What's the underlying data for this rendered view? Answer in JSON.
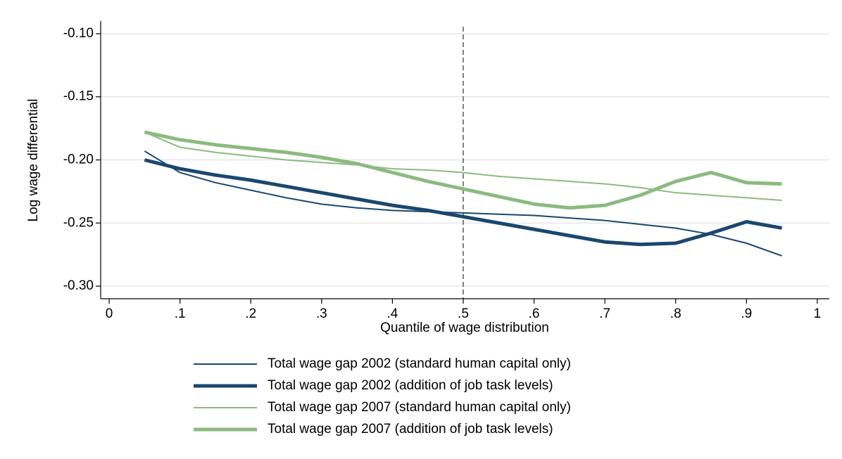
{
  "chart_data": {
    "type": "line",
    "y_label": "Log wage differential",
    "x_label": "Quantile of wage distribution",
    "x": [
      0.05,
      0.1,
      0.15,
      0.2,
      0.25,
      0.3,
      0.35,
      0.4,
      0.45,
      0.5,
      0.55,
      0.6,
      0.65,
      0.7,
      0.75,
      0.8,
      0.85,
      0.9,
      0.95
    ],
    "series": [
      {
        "name": "Total wage gap 2002 (standard human capital only)",
        "color": "#1a476f",
        "line_width": 2,
        "values": [
          -0.193,
          -0.21,
          -0.218,
          -0.224,
          -0.23,
          -0.235,
          -0.238,
          -0.24,
          -0.241,
          -0.242,
          -0.243,
          -0.244,
          -0.246,
          -0.248,
          -0.251,
          -0.254,
          -0.259,
          -0.266,
          -0.276
        ]
      },
      {
        "name": "Total wage gap 2002 (addition of job task levels)",
        "color": "#1a476f",
        "line_width": 5,
        "values": [
          -0.2,
          -0.207,
          -0.212,
          -0.216,
          -0.221,
          -0.226,
          -0.231,
          -0.236,
          -0.24,
          -0.245,
          -0.25,
          -0.255,
          -0.26,
          -0.265,
          -0.267,
          -0.266,
          -0.258,
          -0.249,
          -0.254
        ]
      },
      {
        "name": "Total wage gap 2007 (standard human capital only)",
        "color": "#8cba80",
        "line_width": 2,
        "values": [
          -0.178,
          -0.19,
          -0.194,
          -0.197,
          -0.2,
          -0.202,
          -0.204,
          -0.207,
          -0.208,
          -0.21,
          -0.213,
          -0.215,
          -0.217,
          -0.219,
          -0.222,
          -0.226,
          -0.228,
          -0.23,
          -0.232
        ]
      },
      {
        "name": "Total wage gap 2007 (addition of job task levels)",
        "color": "#8cba80",
        "line_width": 5,
        "values": [
          -0.178,
          -0.184,
          -0.188,
          -0.191,
          -0.194,
          -0.198,
          -0.203,
          -0.21,
          -0.217,
          -0.223,
          -0.229,
          -0.235,
          -0.238,
          -0.236,
          -0.228,
          -0.217,
          -0.21,
          -0.218,
          -0.219
        ]
      }
    ],
    "xlim": [
      -0.012,
      1.017
    ],
    "ylim": [
      -0.31,
      -0.09
    ],
    "xticks": [
      0,
      {
        "value": 0.1,
        "label": ".1"
      },
      {
        "value": 0.2,
        "label": ".2"
      },
      {
        "value": 0.3,
        "label": ".3"
      },
      {
        "value": 0.4,
        "label": ".4"
      },
      {
        "value": 0.5,
        "label": ".5"
      },
      {
        "value": 0.6,
        "label": ".6"
      },
      {
        "value": 0.7,
        "label": ".7"
      },
      {
        "value": 0.8,
        "label": ".8"
      },
      {
        "value": 0.9,
        "label": ".9"
      },
      1
    ],
    "yticks": [
      {
        "value": -0.3,
        "label": "-0.30"
      },
      {
        "value": -0.25,
        "label": "-0.25"
      },
      {
        "value": -0.2,
        "label": "-0.20"
      },
      {
        "value": -0.15,
        "label": "-0.15"
      },
      {
        "value": -0.1,
        "label": "-0.10"
      }
    ],
    "vline": 0.5,
    "grid": true,
    "legend": "bottom"
  }
}
